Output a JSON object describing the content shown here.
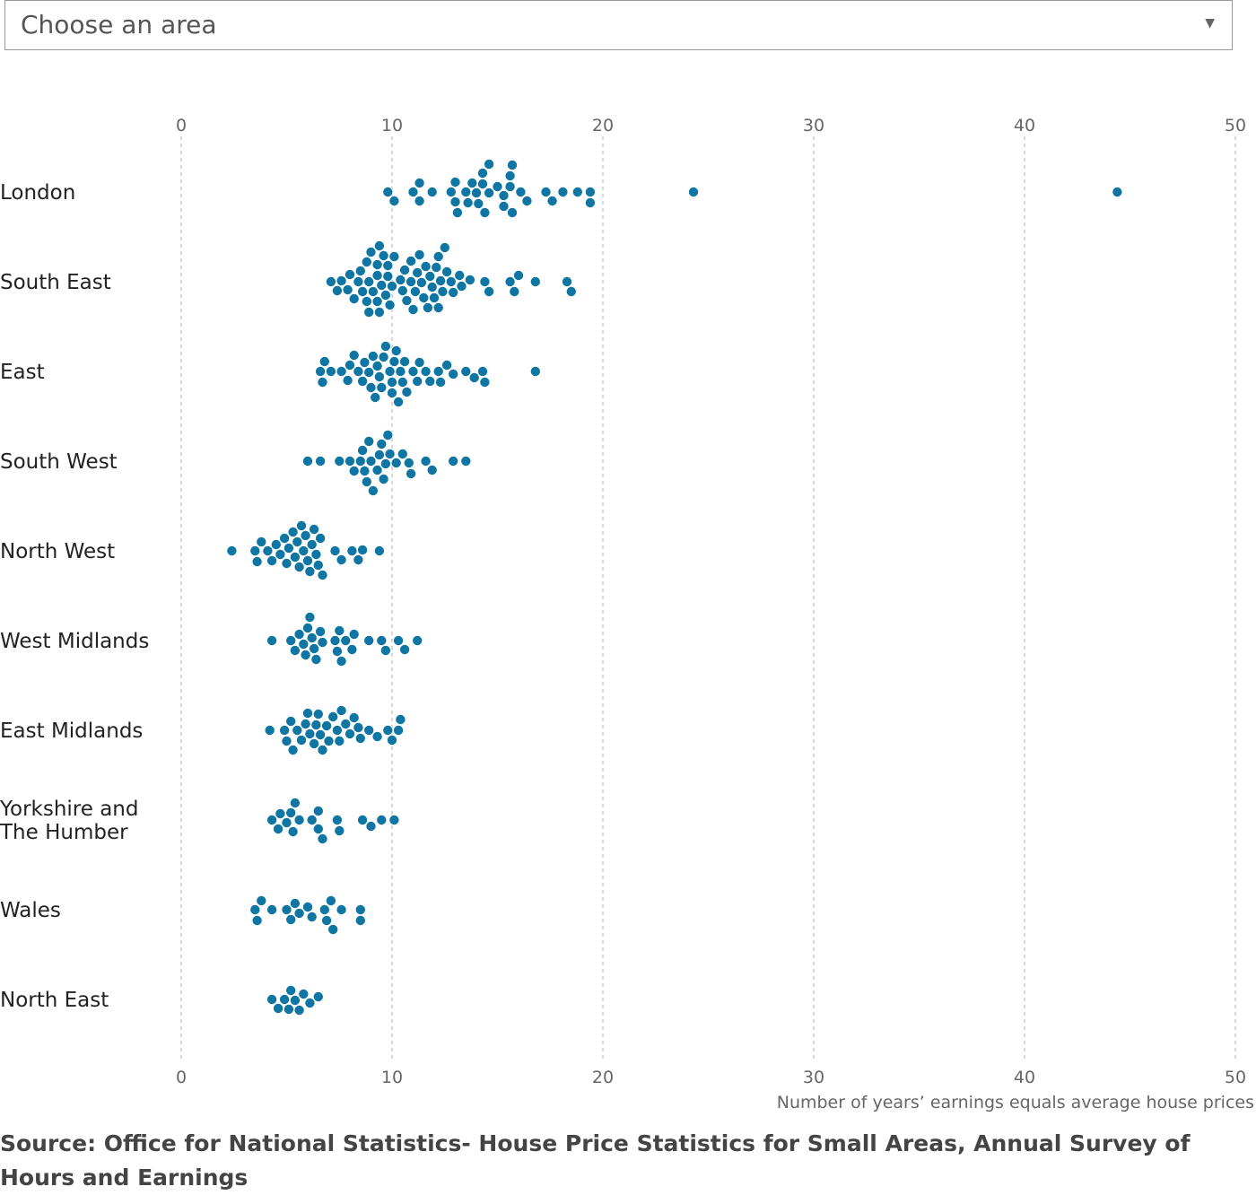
{
  "dropdown": {
    "placeholder": "Choose an area",
    "arrow_icon": "triangle-down-icon"
  },
  "chart_data": {
    "type": "scatter",
    "subtype": "beeswarm",
    "xlabel": "Number of years’ earnings equals average house prices",
    "ylabel": "",
    "xlim": [
      0,
      50
    ],
    "xticks": [
      0,
      10,
      20,
      30,
      40,
      50
    ],
    "grid": "vertical-dashed",
    "dot_color": "#0f75a3",
    "series": [
      {
        "name": "London",
        "values": [
          9.8,
          10.1,
          11.0,
          11.3,
          11.3,
          11.9,
          12.8,
          13.0,
          13.0,
          13.1,
          13.5,
          13.6,
          13.8,
          14.0,
          14.1,
          14.3,
          14.3,
          14.4,
          14.6,
          14.6,
          15.0,
          15.3,
          15.3,
          15.6,
          15.6,
          15.7,
          15.7,
          16.1,
          16.4,
          17.3,
          17.6,
          18.1,
          18.8,
          19.4,
          19.4,
          24.3,
          44.4
        ]
      },
      {
        "name": "South East",
        "values": [
          7.1,
          7.4,
          7.6,
          7.9,
          8.0,
          8.2,
          8.4,
          8.5,
          8.6,
          8.8,
          8.8,
          8.9,
          8.9,
          9.0,
          9.1,
          9.3,
          9.3,
          9.3,
          9.4,
          9.4,
          9.5,
          9.6,
          9.7,
          9.8,
          9.8,
          9.9,
          10.0,
          10.1,
          10.4,
          10.5,
          10.6,
          10.7,
          10.9,
          10.9,
          11.0,
          11.1,
          11.2,
          11.3,
          11.4,
          11.5,
          11.6,
          11.7,
          11.8,
          11.9,
          12.0,
          12.1,
          12.2,
          12.2,
          12.3,
          12.4,
          12.5,
          12.6,
          12.8,
          12.9,
          13.2,
          13.3,
          13.7,
          14.4,
          14.6,
          15.6,
          15.8,
          16.0,
          16.8,
          18.3,
          18.5
        ]
      },
      {
        "name": "East",
        "values": [
          6.6,
          6.7,
          6.8,
          7.1,
          7.6,
          7.9,
          8.0,
          8.2,
          8.4,
          8.6,
          8.7,
          8.9,
          9.0,
          9.1,
          9.2,
          9.3,
          9.4,
          9.5,
          9.6,
          9.7,
          9.9,
          10.0,
          10.0,
          10.1,
          10.2,
          10.3,
          10.4,
          10.5,
          10.6,
          10.7,
          11.0,
          11.2,
          11.3,
          11.6,
          11.8,
          12.2,
          12.3,
          12.6,
          12.9,
          13.5,
          13.9,
          14.3,
          14.4,
          16.8
        ]
      },
      {
        "name": "South West",
        "values": [
          6.0,
          6.6,
          7.5,
          8.0,
          8.2,
          8.5,
          8.6,
          8.7,
          8.8,
          8.9,
          9.0,
          9.1,
          9.3,
          9.4,
          9.5,
          9.6,
          9.7,
          9.8,
          9.9,
          10.2,
          10.5,
          10.8,
          10.9,
          11.6,
          11.9,
          12.9,
          13.5
        ]
      },
      {
        "name": "North West",
        "values": [
          2.4,
          3.5,
          3.6,
          3.8,
          4.1,
          4.3,
          4.5,
          4.7,
          4.9,
          5.0,
          5.1,
          5.3,
          5.4,
          5.5,
          5.6,
          5.7,
          5.8,
          5.9,
          6.0,
          6.1,
          6.2,
          6.3,
          6.4,
          6.5,
          6.6,
          6.7,
          7.3,
          7.6,
          8.1,
          8.4,
          8.6,
          9.4
        ]
      },
      {
        "name": "West Midlands",
        "values": [
          4.3,
          5.2,
          5.4,
          5.6,
          5.8,
          5.9,
          6.0,
          6.1,
          6.2,
          6.3,
          6.4,
          6.6,
          6.7,
          7.3,
          7.4,
          7.5,
          7.6,
          7.8,
          8.1,
          8.2,
          8.9,
          9.5,
          9.7,
          10.3,
          10.6,
          11.2
        ]
      },
      {
        "name": "East Midlands",
        "values": [
          4.2,
          4.9,
          5.0,
          5.2,
          5.3,
          5.5,
          5.7,
          5.9,
          6.0,
          6.1,
          6.3,
          6.4,
          6.5,
          6.6,
          6.7,
          6.9,
          7.0,
          7.2,
          7.4,
          7.5,
          7.6,
          7.8,
          8.0,
          8.2,
          8.4,
          8.5,
          8.9,
          9.3,
          9.8,
          10.0,
          10.3,
          10.4
        ]
      },
      {
        "name": "Yorkshire and\nThe Humber",
        "values": [
          4.3,
          4.6,
          4.7,
          5.0,
          5.2,
          5.3,
          5.4,
          5.6,
          6.2,
          6.5,
          6.5,
          6.7,
          7.4,
          7.5,
          8.6,
          9.0,
          9.5,
          10.1
        ]
      },
      {
        "name": "Wales",
        "values": [
          3.5,
          3.6,
          3.8,
          4.3,
          5.0,
          5.2,
          5.4,
          5.6,
          6.0,
          6.2,
          6.8,
          6.9,
          7.1,
          7.2,
          7.6,
          8.5,
          8.5
        ]
      },
      {
        "name": "North East",
        "values": [
          4.3,
          4.6,
          4.9,
          5.1,
          5.2,
          5.4,
          5.6,
          5.8,
          6.1,
          6.5
        ]
      }
    ]
  },
  "source": "Source: Office for National Statistics- House Price Statistics for Small Areas, Annual Survey of Hours and Earnings"
}
